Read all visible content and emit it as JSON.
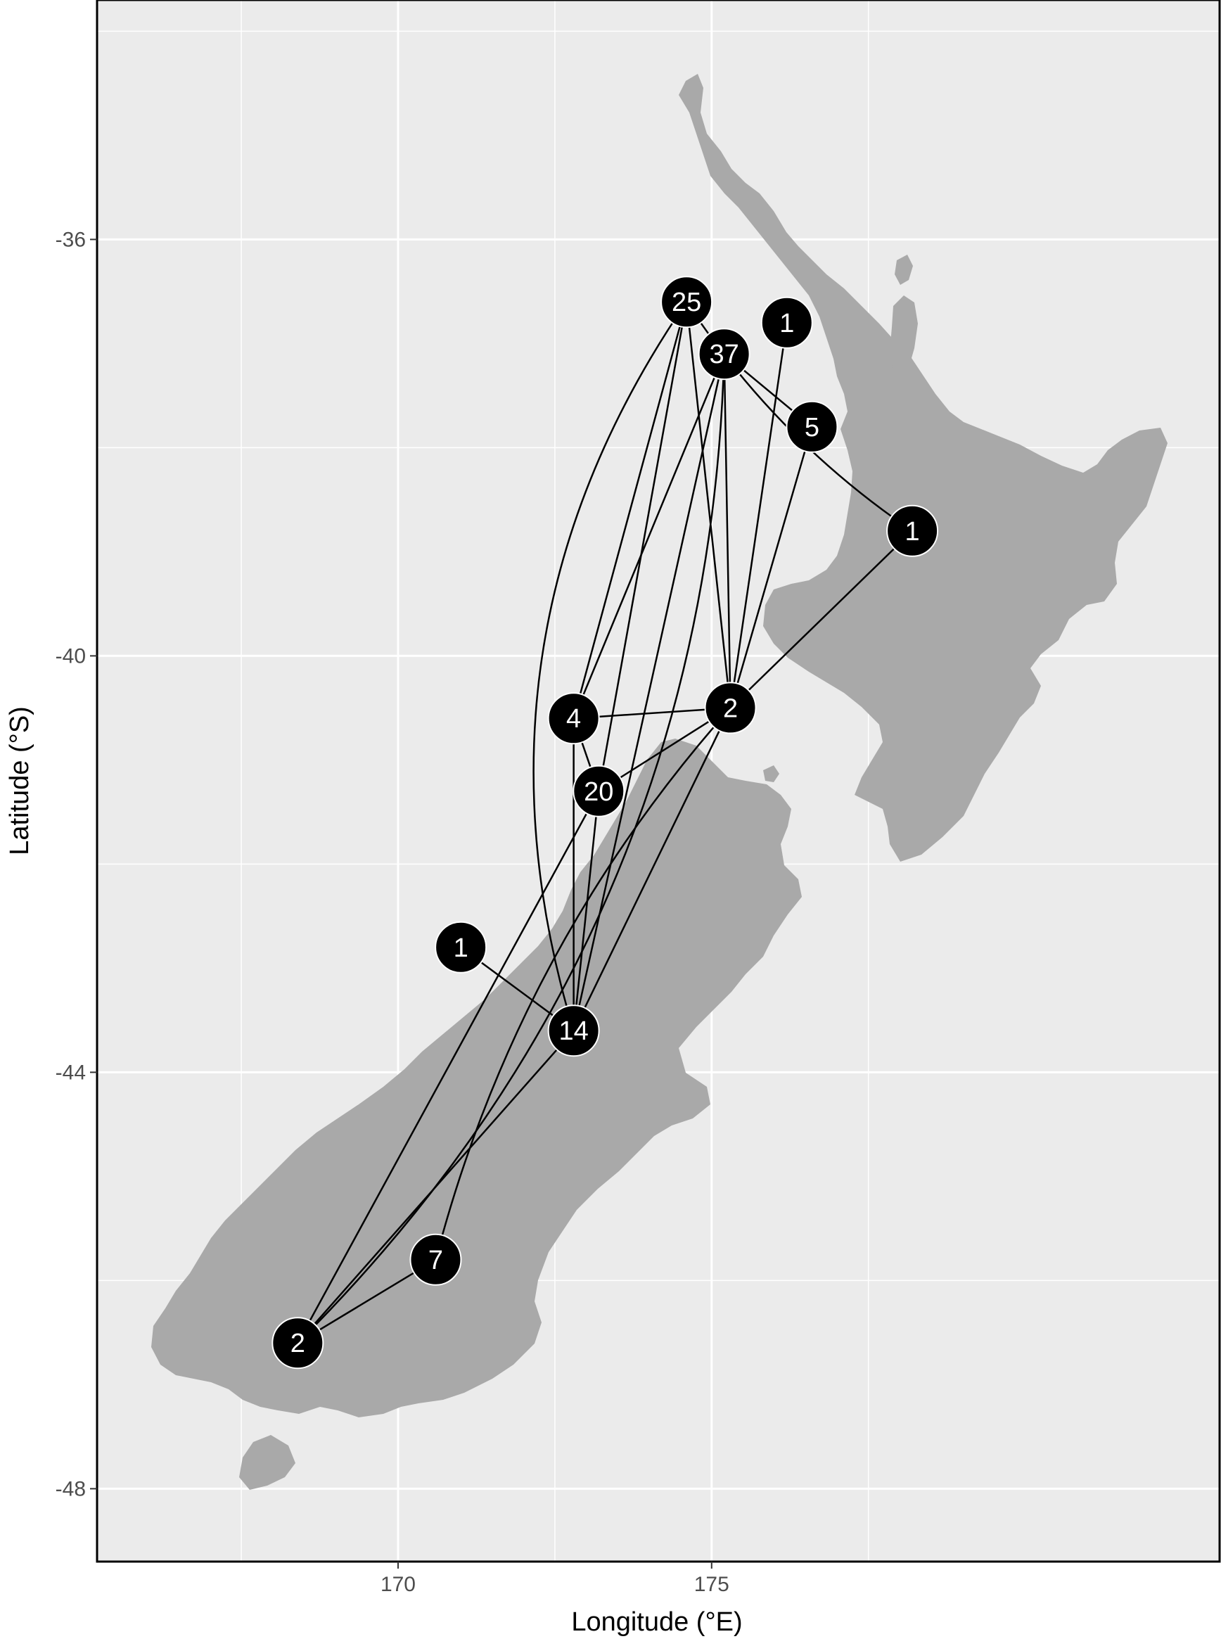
{
  "map": {
    "x_axis_label": "Longitude (°E)",
    "y_axis_label": "Latitude (°S)",
    "x_range": [
      165.2,
      183.1
    ],
    "y_range": [
      -48.7,
      -33.7
    ],
    "x_ticks": [
      170,
      175
    ],
    "y_ticks": [
      -36,
      -40,
      -44,
      -48
    ],
    "x_minor_ticks": [
      167.5,
      172.5,
      177.5
    ],
    "y_minor_ticks": [
      -34,
      -38,
      -42,
      -46
    ],
    "grid": true,
    "colors": {
      "panel": "#EBEBEB",
      "land": "#A9A9A9",
      "grid": "#FFFFFF",
      "node_fill": "#000000",
      "node_text": "#FFFFFF",
      "edge": "#000000"
    },
    "nodes": [
      {
        "id": "A",
        "label": "25",
        "lon": 174.6,
        "lat": -36.6
      },
      {
        "id": "B",
        "label": "37",
        "lon": 175.2,
        "lat": -37.1
      },
      {
        "id": "C",
        "label": "1",
        "lon": 176.2,
        "lat": -36.8
      },
      {
        "id": "D",
        "label": "5",
        "lon": 176.6,
        "lat": -37.8
      },
      {
        "id": "E",
        "label": "1",
        "lon": 178.2,
        "lat": -38.8
      },
      {
        "id": "F",
        "label": "2",
        "lon": 175.3,
        "lat": -40.5
      },
      {
        "id": "G",
        "label": "4",
        "lon": 172.8,
        "lat": -40.6
      },
      {
        "id": "H",
        "label": "20",
        "lon": 173.2,
        "lat": -41.3
      },
      {
        "id": "I",
        "label": "1",
        "lon": 171.0,
        "lat": -42.8
      },
      {
        "id": "J",
        "label": "14",
        "lon": 172.8,
        "lat": -43.6
      },
      {
        "id": "K",
        "label": "7",
        "lon": 170.6,
        "lat": -45.8
      },
      {
        "id": "L",
        "label": "2",
        "lon": 168.4,
        "lat": -46.6
      }
    ],
    "edges": [
      {
        "from": "A",
        "to": "E",
        "curve": 0.05
      },
      {
        "from": "A",
        "to": "F",
        "curve": 0
      },
      {
        "from": "A",
        "to": "G",
        "curve": 0
      },
      {
        "from": "A",
        "to": "J",
        "curve": 0.12
      },
      {
        "from": "A",
        "to": "H",
        "curve": 0
      },
      {
        "from": "B",
        "to": "D",
        "curve": 0
      },
      {
        "from": "B",
        "to": "F",
        "curve": 0
      },
      {
        "from": "B",
        "to": "G",
        "curve": 0
      },
      {
        "from": "B",
        "to": "J",
        "curve": 0
      },
      {
        "from": "B",
        "to": "L",
        "curve": -0.1
      },
      {
        "from": "C",
        "to": "F",
        "curve": 0
      },
      {
        "from": "D",
        "to": "F",
        "curve": 0
      },
      {
        "from": "E",
        "to": "F",
        "curve": 0
      },
      {
        "from": "F",
        "to": "G",
        "curve": 0
      },
      {
        "from": "F",
        "to": "H",
        "curve": 0
      },
      {
        "from": "F",
        "to": "J",
        "curve": 0
      },
      {
        "from": "F",
        "to": "K",
        "curve": 0.06
      },
      {
        "from": "G",
        "to": "H",
        "curve": 0
      },
      {
        "from": "G",
        "to": "J",
        "curve": 0
      },
      {
        "from": "H",
        "to": "J",
        "curve": 0
      },
      {
        "from": "H",
        "to": "L",
        "curve": 0
      },
      {
        "from": "I",
        "to": "J",
        "curve": 0
      },
      {
        "from": "J",
        "to": "L",
        "curve": 0
      },
      {
        "from": "K",
        "to": "L",
        "curve": 0
      }
    ]
  }
}
